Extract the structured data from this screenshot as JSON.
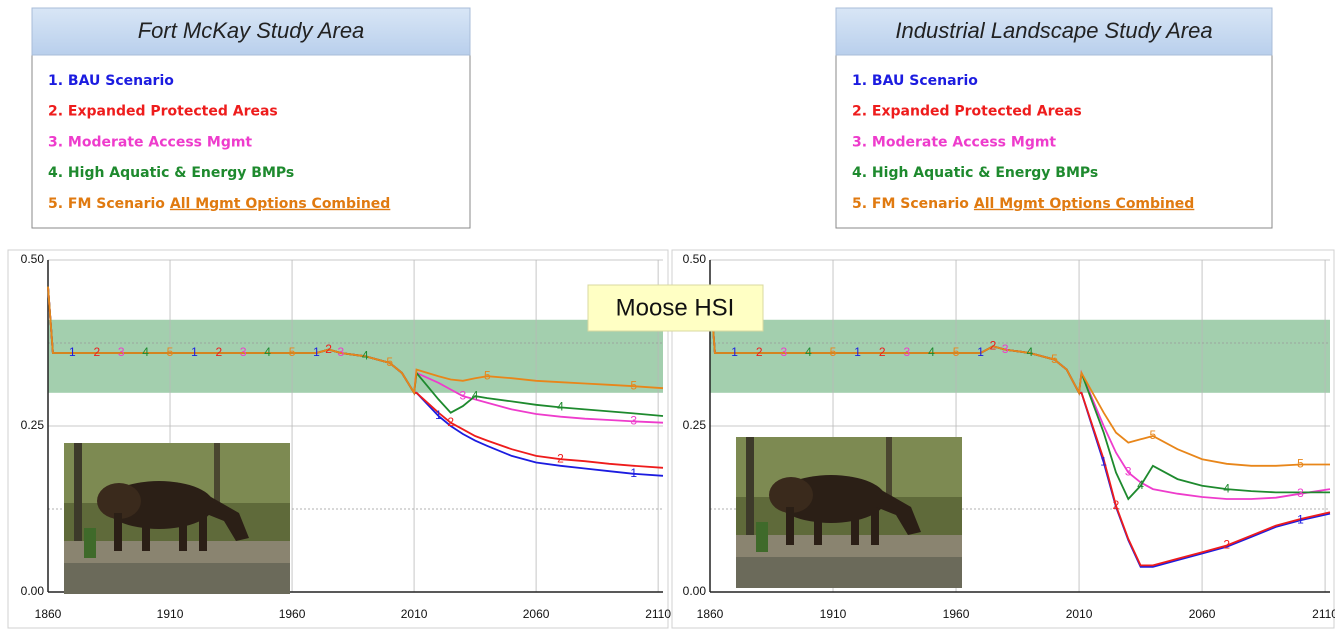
{
  "label": "Moose HSI",
  "chart_data": [
    {
      "type": "line",
      "title": "Fort McKay Study Area",
      "x": [
        1860,
        1862,
        1870,
        1880,
        1890,
        1900,
        1910,
        1920,
        1930,
        1940,
        1950,
        1960,
        1970,
        1975,
        1980,
        1990,
        2000,
        2005,
        2010,
        2011,
        2020,
        2025,
        2030,
        2035,
        2040,
        2050,
        2060,
        2070,
        2080,
        2090,
        2100,
        2112
      ],
      "xlim": [
        1860,
        2112
      ],
      "xticks": [
        1860,
        1910,
        1960,
        2010,
        2060,
        2110
      ],
      "ylim": [
        0,
        0.5
      ],
      "yticks": [
        {
          "value": 0,
          "label": "0.00"
        },
        {
          "value": 0.25,
          "label": "0.25"
        },
        {
          "value": 0.5,
          "label": "0.50"
        }
      ],
      "grid": true,
      "minor_grid": true,
      "band": {
        "range": [
          0.3,
          0.41
        ],
        "color": "#8cc39a"
      },
      "series": [
        {
          "name": "1. BAU Scenario",
          "marker": "1",
          "color": "#1c1ce0",
          "values": [
            0.46,
            0.36,
            0.36,
            0.36,
            0.36,
            0.36,
            0.36,
            0.36,
            0.36,
            0.36,
            0.36,
            0.36,
            0.36,
            0.365,
            0.36,
            0.355,
            0.345,
            0.33,
            0.3,
            0.3,
            0.265,
            0.25,
            0.238,
            0.228,
            0.22,
            0.205,
            0.195,
            0.19,
            0.186,
            0.182,
            0.178,
            0.175
          ]
        },
        {
          "name": "2. Expanded Protected Areas",
          "marker": "2",
          "color": "#ee1c1c",
          "values": [
            0.46,
            0.36,
            0.36,
            0.36,
            0.36,
            0.36,
            0.36,
            0.36,
            0.36,
            0.36,
            0.36,
            0.36,
            0.36,
            0.365,
            0.36,
            0.355,
            0.345,
            0.33,
            0.3,
            0.3,
            0.27,
            0.255,
            0.245,
            0.235,
            0.228,
            0.215,
            0.205,
            0.2,
            0.197,
            0.193,
            0.19,
            0.187
          ]
        },
        {
          "name": "3. Moderate Access Mgmt",
          "marker": "3",
          "color": "#ee3ccc",
          "values": [
            0.46,
            0.36,
            0.36,
            0.36,
            0.36,
            0.36,
            0.36,
            0.36,
            0.36,
            0.36,
            0.36,
            0.36,
            0.36,
            0.365,
            0.36,
            0.355,
            0.345,
            0.33,
            0.3,
            0.33,
            0.315,
            0.305,
            0.295,
            0.29,
            0.285,
            0.275,
            0.268,
            0.264,
            0.261,
            0.259,
            0.257,
            0.255
          ]
        },
        {
          "name": "4. High Aquatic & Energy BMPs",
          "marker": "4",
          "color": "#1e8a2e",
          "values": [
            0.46,
            0.36,
            0.36,
            0.36,
            0.36,
            0.36,
            0.36,
            0.36,
            0.36,
            0.36,
            0.36,
            0.36,
            0.36,
            0.365,
            0.36,
            0.355,
            0.345,
            0.33,
            0.3,
            0.33,
            0.29,
            0.27,
            0.28,
            0.295,
            0.292,
            0.287,
            0.282,
            0.278,
            0.275,
            0.272,
            0.269,
            0.265
          ]
        },
        {
          "name": "5. FM Scenario",
          "name_emphasis": "All Mgmt Options Combined",
          "marker": "5",
          "color": "#e8861a",
          "label_color": "#e07a10",
          "values": [
            0.46,
            0.36,
            0.36,
            0.36,
            0.36,
            0.36,
            0.36,
            0.36,
            0.36,
            0.36,
            0.36,
            0.36,
            0.36,
            0.365,
            0.36,
            0.355,
            0.345,
            0.33,
            0.3,
            0.335,
            0.325,
            0.32,
            0.318,
            0.322,
            0.325,
            0.322,
            0.318,
            0.316,
            0.314,
            0.312,
            0.31,
            0.307
          ]
        }
      ]
    },
    {
      "type": "line",
      "title": "Industrial Landscape  Study Area",
      "x": [
        1860,
        1862,
        1870,
        1880,
        1890,
        1900,
        1910,
        1920,
        1930,
        1940,
        1950,
        1960,
        1970,
        1975,
        1980,
        1990,
        2000,
        2005,
        2010,
        2011,
        2020,
        2025,
        2030,
        2035,
        2040,
        2050,
        2060,
        2070,
        2080,
        2090,
        2100,
        2112
      ],
      "xlim": [
        1860,
        2112
      ],
      "xticks": [
        1860,
        1910,
        1960,
        2010,
        2060,
        2110
      ],
      "ylim": [
        0,
        0.5
      ],
      "yticks": [
        {
          "value": 0,
          "label": "0.00"
        },
        {
          "value": 0.25,
          "label": "0.25"
        },
        {
          "value": 0.5,
          "label": "0.50"
        }
      ],
      "grid": true,
      "minor_grid": true,
      "band": {
        "range": [
          0.3,
          0.41
        ],
        "color": "#8cc39a"
      },
      "series": [
        {
          "name": "1. BAU Scenario",
          "marker": "1",
          "color": "#1c1ce0",
          "values": [
            0.46,
            0.36,
            0.36,
            0.36,
            0.36,
            0.36,
            0.36,
            0.36,
            0.36,
            0.36,
            0.36,
            0.36,
            0.36,
            0.37,
            0.365,
            0.36,
            0.35,
            0.335,
            0.3,
            0.3,
            0.195,
            0.128,
            0.078,
            0.038,
            0.038,
            0.048,
            0.058,
            0.068,
            0.083,
            0.098,
            0.108,
            0.118
          ]
        },
        {
          "name": "2. Expanded Protected Areas",
          "marker": "2",
          "color": "#ee1c1c",
          "values": [
            0.46,
            0.36,
            0.36,
            0.36,
            0.36,
            0.36,
            0.36,
            0.36,
            0.36,
            0.36,
            0.36,
            0.36,
            0.36,
            0.37,
            0.365,
            0.36,
            0.35,
            0.335,
            0.3,
            0.3,
            0.2,
            0.13,
            0.08,
            0.04,
            0.04,
            0.05,
            0.06,
            0.07,
            0.085,
            0.1,
            0.11,
            0.12
          ]
        },
        {
          "name": "3. Moderate Access Mgmt",
          "marker": "3",
          "color": "#ee3ccc",
          "values": [
            0.46,
            0.36,
            0.36,
            0.36,
            0.36,
            0.36,
            0.36,
            0.36,
            0.36,
            0.36,
            0.36,
            0.36,
            0.36,
            0.37,
            0.365,
            0.36,
            0.35,
            0.335,
            0.3,
            0.33,
            0.25,
            0.21,
            0.18,
            0.165,
            0.155,
            0.148,
            0.143,
            0.14,
            0.14,
            0.142,
            0.148,
            0.155
          ]
        },
        {
          "name": "4. High Aquatic & Energy BMPs",
          "marker": "4",
          "color": "#1e8a2e",
          "values": [
            0.46,
            0.36,
            0.36,
            0.36,
            0.36,
            0.36,
            0.36,
            0.36,
            0.36,
            0.36,
            0.36,
            0.36,
            0.36,
            0.37,
            0.365,
            0.36,
            0.35,
            0.335,
            0.3,
            0.33,
            0.24,
            0.18,
            0.14,
            0.16,
            0.19,
            0.17,
            0.16,
            0.155,
            0.152,
            0.15,
            0.15,
            0.15
          ]
        },
        {
          "name": "5. FM Scenario",
          "name_emphasis": "All Mgmt Options Combined",
          "marker": "5",
          "color": "#e8861a",
          "label_color": "#e07a10",
          "values": [
            0.46,
            0.36,
            0.36,
            0.36,
            0.36,
            0.36,
            0.36,
            0.36,
            0.36,
            0.36,
            0.36,
            0.36,
            0.36,
            0.37,
            0.365,
            0.36,
            0.35,
            0.335,
            0.3,
            0.33,
            0.27,
            0.24,
            0.225,
            0.23,
            0.235,
            0.215,
            0.2,
            0.193,
            0.19,
            0.19,
            0.192,
            0.192
          ]
        }
      ]
    }
  ]
}
